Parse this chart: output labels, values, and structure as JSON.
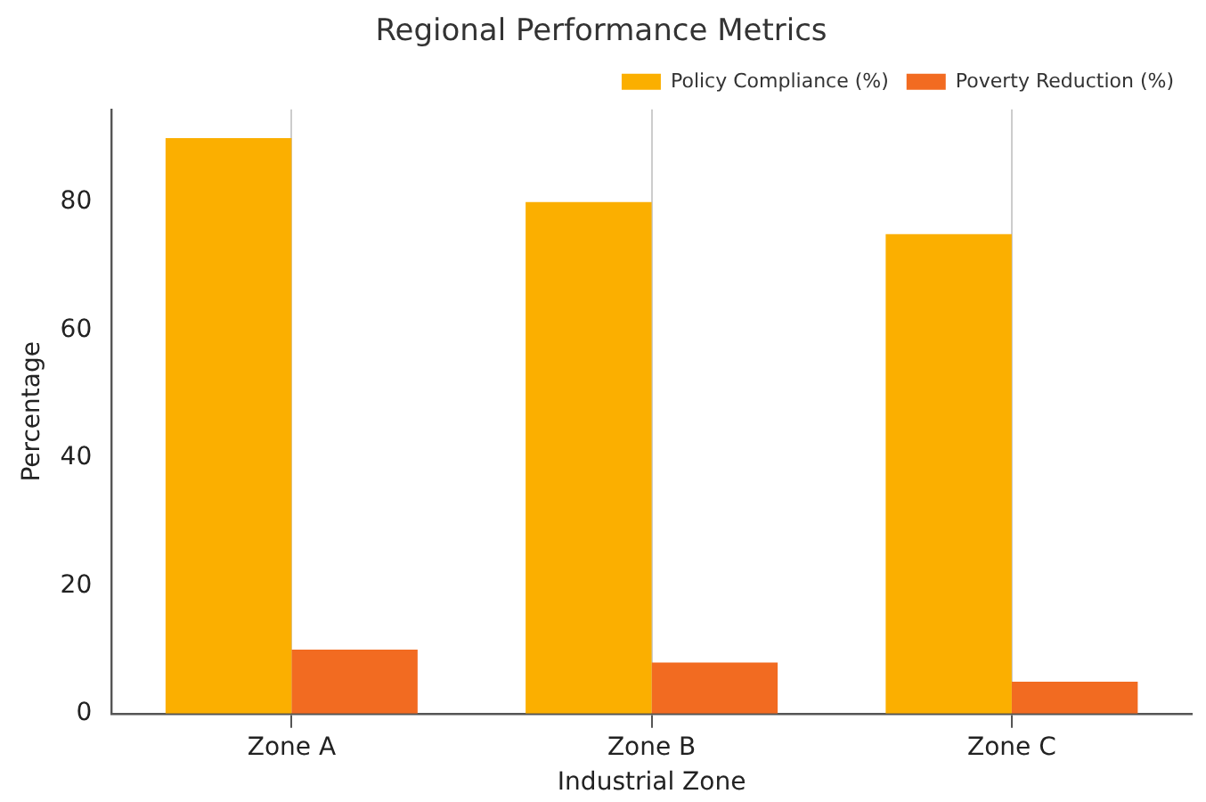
{
  "chart_data": {
    "type": "bar",
    "title": "Regional Performance Metrics",
    "xlabel": "Industrial Zone",
    "ylabel": "Percentage",
    "categories": [
      "Zone A",
      "Zone B",
      "Zone C"
    ],
    "series": [
      {
        "name": "Policy Compliance (%)",
        "color": "#fbaf00",
        "values": [
          90,
          80,
          75
        ]
      },
      {
        "name": "Poverty Reduction (%)",
        "color": "#f26b21",
        "values": [
          10,
          8,
          5
        ]
      }
    ],
    "ylim": [
      0,
      94.5
    ],
    "yticks": [
      0,
      20,
      40,
      60,
      80
    ],
    "grid": "x",
    "legend": "top right"
  }
}
